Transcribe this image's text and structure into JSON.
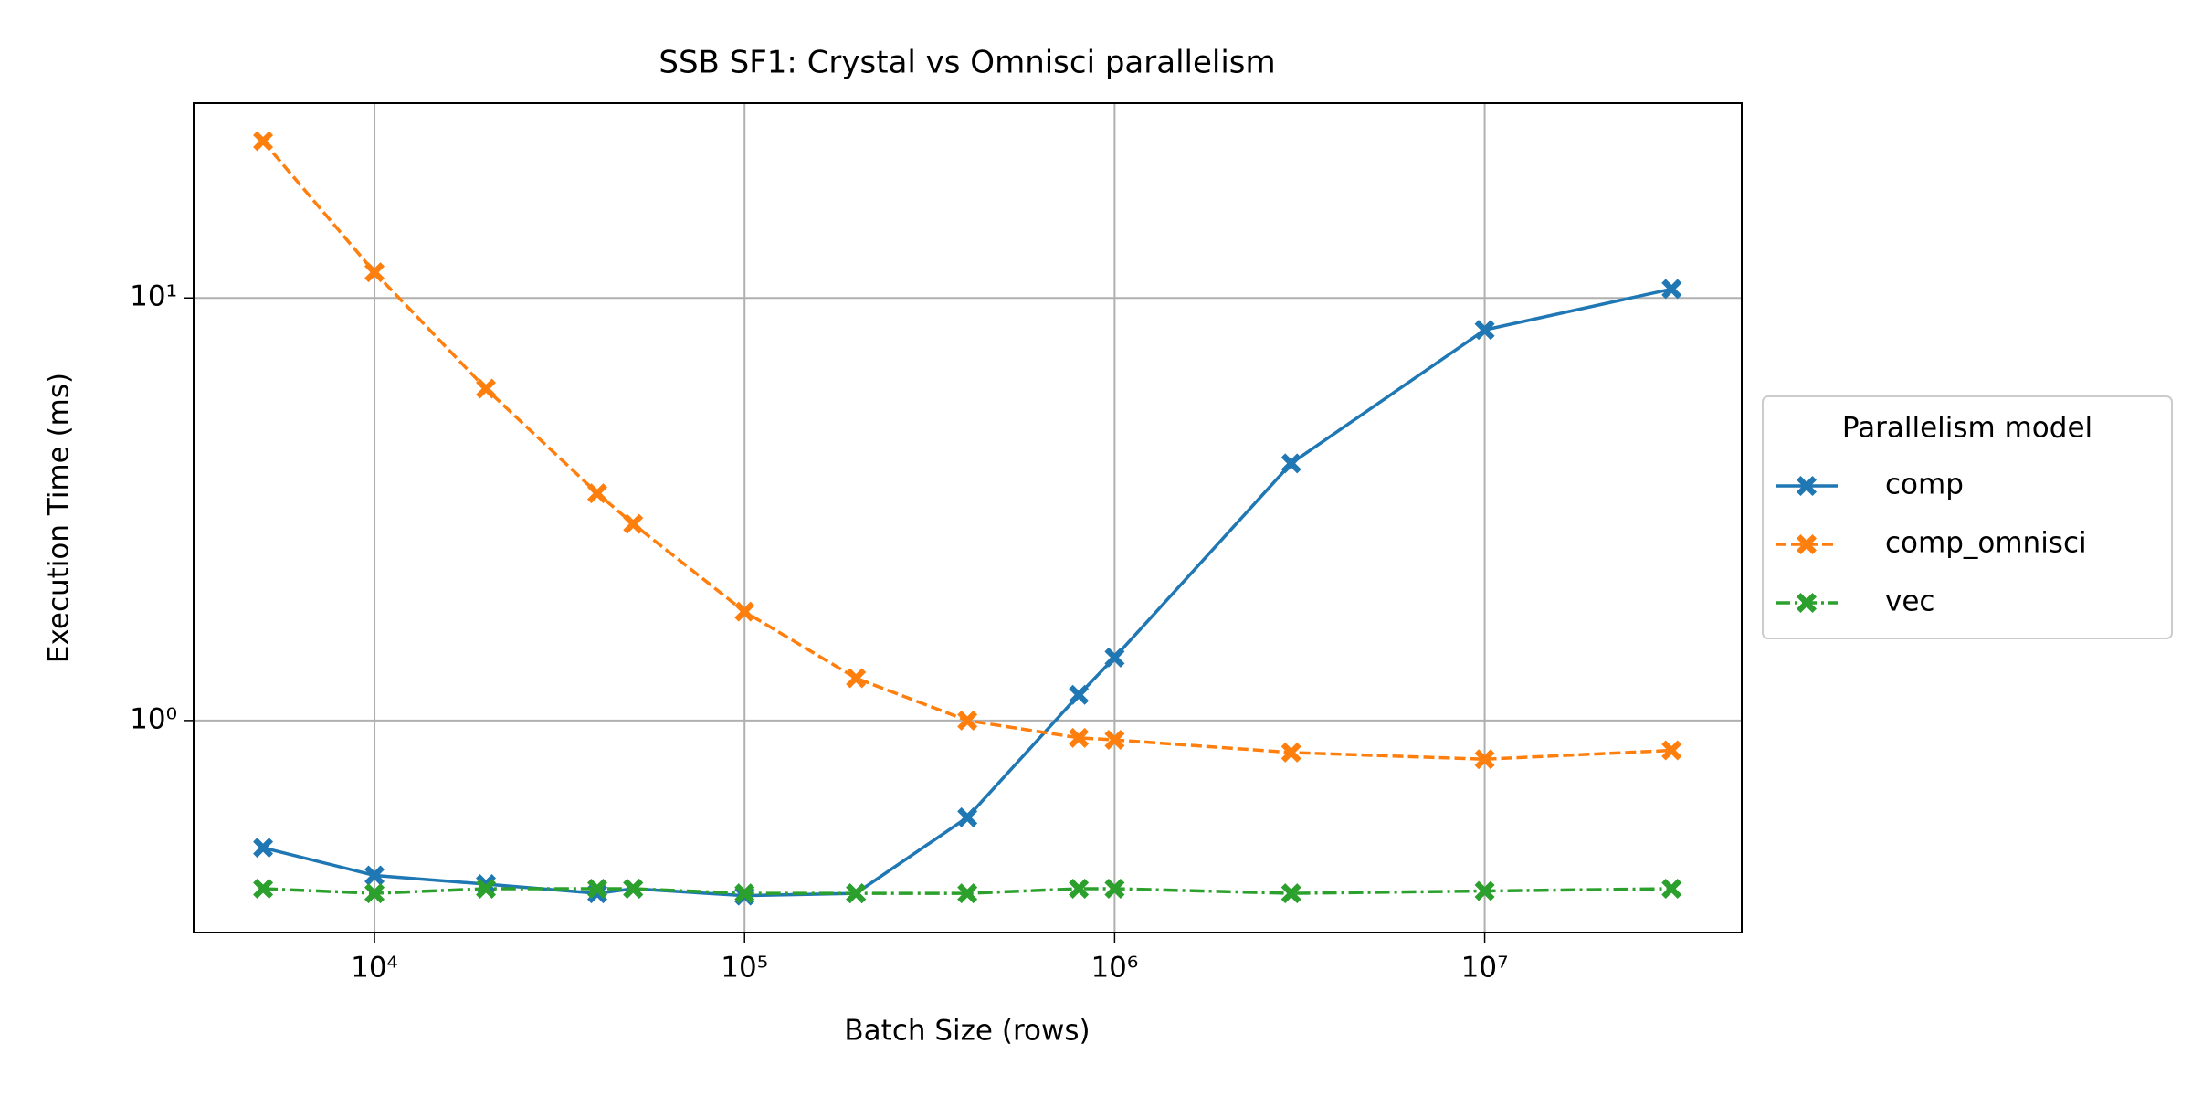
{
  "chart_data": {
    "type": "line",
    "title": "SSB SF1: Crystal vs Omnisci parallelism",
    "xlabel": "Batch Size (rows)",
    "ylabel": "Execution Time (ms)",
    "xscale": "log",
    "yscale": "log",
    "grid": true,
    "legend_title": "Parallelism model",
    "legend": "right",
    "x": [
      5000,
      10000,
      20000,
      40000,
      50000,
      100000,
      200000,
      400000,
      800000,
      1000000,
      3000000,
      10000000,
      32000000
    ],
    "series": [
      {
        "name": "comp",
        "color": "#1f77b4",
        "linestyle": "solid",
        "values": [
          0.5,
          0.43,
          0.41,
          0.39,
          0.4,
          0.385,
          0.39,
          0.59,
          1.15,
          1.41,
          4.06,
          8.4,
          10.5
        ]
      },
      {
        "name": "comp_omnisci",
        "color": "#ff7f0e",
        "linestyle": "dashed",
        "values": [
          23.5,
          11.5,
          6.1,
          3.45,
          2.92,
          1.81,
          1.26,
          1.0,
          0.91,
          0.9,
          0.84,
          0.81,
          0.85
        ]
      },
      {
        "name": "vec",
        "color": "#2ca02c",
        "linestyle": "dashdot",
        "values": [
          0.4,
          0.39,
          0.4,
          0.4,
          0.4,
          0.39,
          0.39,
          0.39,
          0.4,
          0.4,
          0.39,
          0.395,
          0.4
        ]
      }
    ],
    "xlim": [
      3245,
      49500000
    ],
    "ylim": [
      0.315,
      28.9
    ],
    "xticks": [
      {
        "value": 10000,
        "label": "10⁴"
      },
      {
        "value": 100000,
        "label": "10⁵"
      },
      {
        "value": 1000000,
        "label": "10⁶"
      },
      {
        "value": 10000000,
        "label": "10⁷"
      }
    ],
    "yticks": [
      {
        "value": 1,
        "label": "10⁰"
      },
      {
        "value": 10,
        "label": "10¹"
      }
    ]
  }
}
